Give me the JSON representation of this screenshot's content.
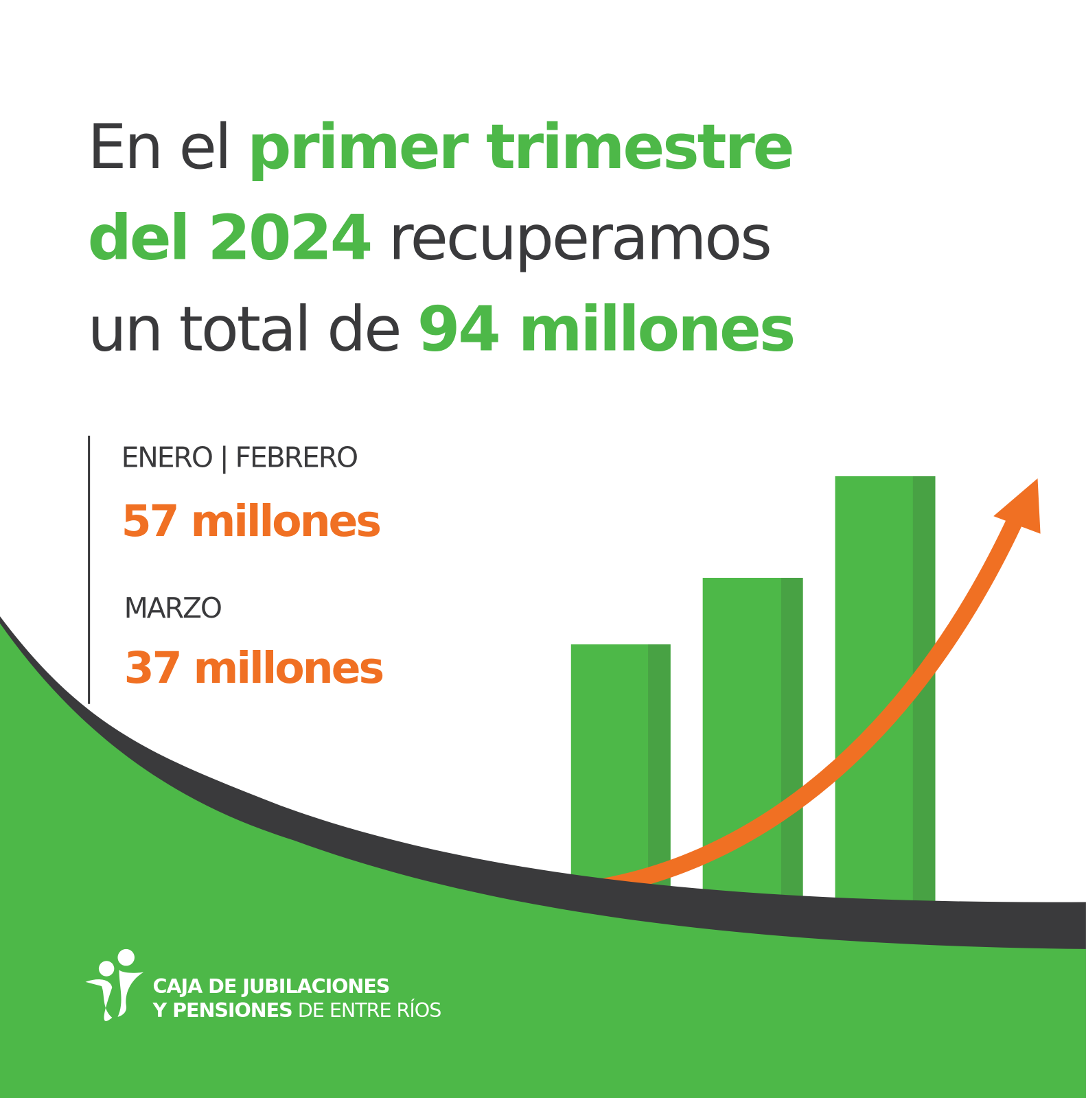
{
  "headline": {
    "line1": [
      "En el ",
      "primer trimestre"
    ],
    "line2": [
      "del 2024",
      " recuperamos"
    ],
    "line3": [
      "un total de ",
      "94 millones"
    ]
  },
  "stats": [
    {
      "label": "ENERO | FEBRERO",
      "value": "57 millones"
    },
    {
      "label": "MARZO",
      "value": "37 millones"
    }
  ],
  "logo": {
    "line1": "CAJA DE JUBILACIONES",
    "line2_bold": "Y PENSIONES",
    "line2_rest": " DE ENTRE RÍOS"
  }
}
